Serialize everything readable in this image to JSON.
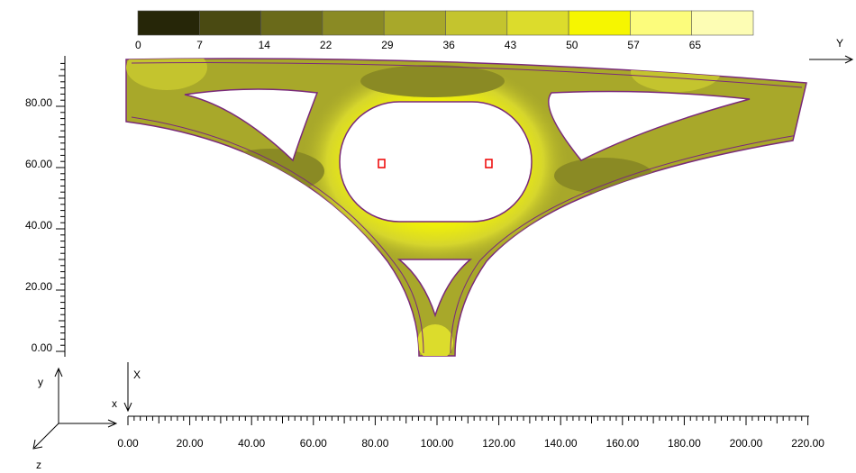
{
  "colorbar": {
    "labels": [
      "0",
      "7",
      "14",
      "22",
      "29",
      "36",
      "43",
      "50",
      "57",
      "65"
    ],
    "colors": [
      "#262608",
      "#4a4a12",
      "#6a6a1a",
      "#8a8a24",
      "#a8a82a",
      "#c4c42e",
      "#dcdc2c",
      "#f6f600",
      "#fcfc7c",
      "#fdfdb4"
    ]
  },
  "y_axis": {
    "name": "Y",
    "tick_labels": [
      "0.00",
      "20.00",
      "40.00",
      "60.00",
      "80.00"
    ]
  },
  "x_axis": {
    "name": "X",
    "tick_labels": [
      "0.00",
      "20.00",
      "40.00",
      "60.00",
      "80.00",
      "100.00",
      "120.00",
      "140.00",
      "160.00",
      "180.00",
      "200.00",
      "220.00"
    ]
  },
  "triad": {
    "x": "x",
    "y": "y",
    "z": "z"
  }
}
